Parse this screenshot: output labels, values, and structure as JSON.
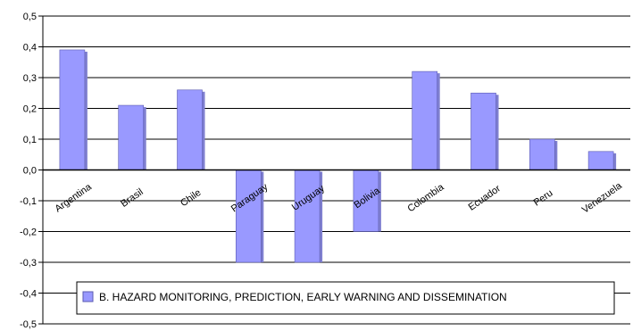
{
  "chart_data": {
    "type": "bar",
    "categories": [
      "Argentina",
      "Brasil",
      "Chile",
      "Paraguay",
      "Uruguay",
      "Bolivia",
      "Colombia",
      "Ecuador",
      "Peru",
      "Venezuela"
    ],
    "series": [
      {
        "name": "B. HAZARD MONITORING, PREDICTION, EARLY WARNING AND DISSEMINATION",
        "values": [
          0.39,
          0.21,
          0.26,
          -0.3,
          -0.3,
          -0.2,
          0.32,
          0.25,
          0.1,
          0.06
        ]
      }
    ],
    "ylim": [
      -0.5,
      0.5
    ],
    "yticks": [
      "0,5",
      "0,4",
      "0,3",
      "0,2",
      "0,1",
      "0,0",
      "-0,1",
      "-0,2",
      "-0,3",
      "-0,4",
      "-0,5"
    ],
    "grid": true,
    "legend_position": "bottom-inside",
    "colors": {
      "bar": "#9999ff",
      "bar_edge": "#5a5ab0",
      "bar_shadow": "#7f7fd0",
      "grid": "#000000"
    }
  }
}
